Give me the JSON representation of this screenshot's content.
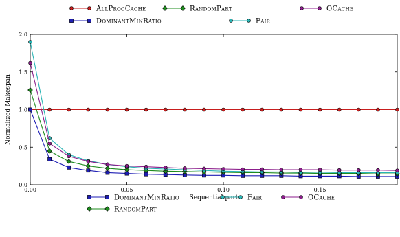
{
  "chart_data": {
    "type": "line",
    "title": "",
    "xlabel": "Sequential part",
    "ylabel": "Normalized Makespan",
    "xlim": [
      0.0,
      0.19
    ],
    "ylim": [
      0.0,
      2.0
    ],
    "xticks": [
      0.0,
      0.05,
      0.1,
      0.15
    ],
    "xtick_labels": [
      "0.00",
      "0.05",
      "0.10",
      "0.15"
    ],
    "yticks": [
      0.0,
      0.5,
      1.0,
      1.5,
      2.0
    ],
    "ytick_labels": [
      "0.0",
      "0.5",
      "1.0",
      "1.5",
      "2.0"
    ],
    "x": [
      0.0,
      0.01,
      0.02,
      0.03,
      0.04,
      0.05,
      0.06,
      0.07,
      0.08,
      0.09,
      0.1,
      0.11,
      0.12,
      0.13,
      0.14,
      0.15,
      0.16,
      0.17,
      0.18,
      0.19
    ],
    "series": [
      {
        "name": "AllProcCache",
        "color": "#c81e1e",
        "marker": "circle",
        "values": [
          1.0,
          1.0,
          1.0,
          1.0,
          1.0,
          1.0,
          1.0,
          1.0,
          1.0,
          1.0,
          1.0,
          1.0,
          1.0,
          1.0,
          1.0,
          1.0,
          1.0,
          1.0,
          1.0,
          1.0
        ]
      },
      {
        "name": "DominantMinRatio",
        "color": "#1e1eb4",
        "marker": "square",
        "values": [
          1.0,
          0.34,
          0.23,
          0.19,
          0.16,
          0.15,
          0.14,
          0.135,
          0.13,
          0.125,
          0.125,
          0.12,
          0.12,
          0.12,
          0.115,
          0.115,
          0.115,
          0.11,
          0.11,
          0.11
        ]
      },
      {
        "name": "RandomPart",
        "color": "#1e8c1e",
        "marker": "diamond",
        "values": [
          1.26,
          0.45,
          0.31,
          0.25,
          0.22,
          0.2,
          0.19,
          0.18,
          0.175,
          0.17,
          0.165,
          0.16,
          0.16,
          0.155,
          0.155,
          0.15,
          0.15,
          0.15,
          0.145,
          0.145
        ]
      },
      {
        "name": "Fair",
        "color": "#28b4b4",
        "marker": "circle",
        "values": [
          1.9,
          0.62,
          0.4,
          0.32,
          0.27,
          0.24,
          0.22,
          0.21,
          0.2,
          0.19,
          0.18,
          0.175,
          0.17,
          0.17,
          0.165,
          0.165,
          0.16,
          0.16,
          0.16,
          0.16
        ]
      },
      {
        "name": "OCache",
        "color": "#8c1e8c",
        "marker": "circle",
        "values": [
          1.62,
          0.55,
          0.38,
          0.31,
          0.27,
          0.25,
          0.24,
          0.23,
          0.22,
          0.215,
          0.21,
          0.205,
          0.205,
          0.2,
          0.2,
          0.2,
          0.195,
          0.195,
          0.195,
          0.19
        ]
      }
    ],
    "legend_top": {
      "placement": "top",
      "entries": [
        "AllProcCache",
        "RandomPart",
        "OCache",
        "DominantMinRatio",
        "Fair"
      ]
    },
    "legend_bottom": {
      "placement": "bottom",
      "entries": [
        "DominantMinRatio",
        "Fair",
        "OCache",
        "RandomPart"
      ]
    },
    "grid": false
  }
}
